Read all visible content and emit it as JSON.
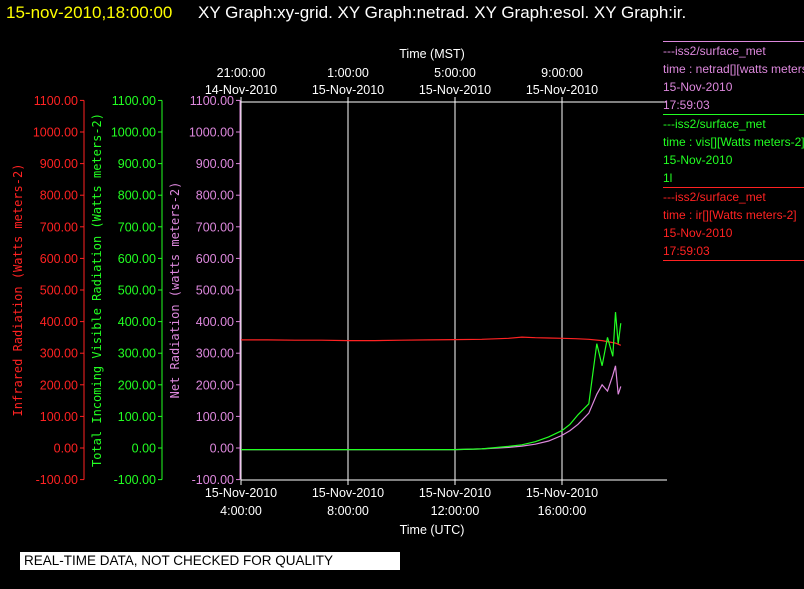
{
  "header": {
    "timestamp": "15-nov-2010,18:00:00",
    "title": "XY Graph:xy-grid.  XY Graph:netrad.  XY Graph:esol.  XY Graph:ir."
  },
  "legend": [
    {
      "lines": [
        "---iss2/surface_met",
        "time : netrad[][watts meters-2]",
        "15-Nov-2010",
        "17:59:03"
      ],
      "color": "#dd88dd"
    },
    {
      "lines": [
        "---iss2/surface_met",
        "time : vis[][Watts meters-2]",
        "15-Nov-2010",
        "1l"
      ],
      "color": "#22ff22"
    },
    {
      "lines": [
        "---iss2/surface_met",
        "time : ir[][Watts meters-2]",
        "15-Nov-2010",
        "17:59:03"
      ],
      "color": "#ff2222"
    }
  ],
  "footer": {
    "quality_notice": "REAL-TIME DATA, NOT CHECKED FOR QUALITY"
  },
  "colors": {
    "ir": "#ff2222",
    "vis": "#22ff22",
    "netrad": "#dd88dd",
    "grid": "#ffffff",
    "background": "#000000"
  },
  "chart_data": {
    "type": "line",
    "title": "",
    "xlabel": "Time (UTC)",
    "x2label": "Time (MST)",
    "xlim": [
      0,
      14.5
    ],
    "x_ticks": [
      {
        "x": 0,
        "date": "15-Nov-2010",
        "time": "4:00:00"
      },
      {
        "x": 4,
        "date": "15-Nov-2010",
        "time": "8:00:00"
      },
      {
        "x": 8,
        "date": "15-Nov-2010",
        "time": "12:00:00"
      },
      {
        "x": 12,
        "date": "15-Nov-2010",
        "time": "16:00:00"
      }
    ],
    "x2_ticks": [
      {
        "x": 0,
        "time": "21:00:00",
        "date": "14-Nov-2010"
      },
      {
        "x": 4,
        "time": "1:00:00",
        "date": "15-Nov-2010"
      },
      {
        "x": 8,
        "time": "5:00:00",
        "date": "15-Nov-2010"
      },
      {
        "x": 12,
        "time": "9:00:00",
        "date": "15-Nov-2010"
      }
    ],
    "y_axes": [
      {
        "label": "Infrared Radiation (Watts meters-2)",
        "color": "#ff2222"
      },
      {
        "label": "Total Incoming Visible Radiation (Watts meters-2)",
        "color": "#22ff22"
      },
      {
        "label": "Net Radiation (watts meters-2)",
        "color": "#dd88dd"
      }
    ],
    "ylim": [
      -100,
      1100
    ],
    "y_ticks": [
      "1100.00",
      "1000.00",
      "900.00",
      "800.00",
      "700.00",
      "600.00",
      "500.00",
      "400.00",
      "300.00",
      "200.00",
      "100.00",
      "0.00",
      "-100.00"
    ],
    "grid": true,
    "series": [
      {
        "key": "ir",
        "x": [
          0,
          1,
          2,
          3,
          4,
          5,
          6,
          7,
          8,
          9,
          10,
          10.5,
          11,
          11.5,
          12,
          12.5,
          13,
          13.5,
          14,
          14.2
        ],
        "values": [
          342,
          342,
          341,
          341,
          340,
          340,
          341,
          342,
          343,
          344,
          347,
          351,
          349,
          348,
          347,
          346,
          344,
          340,
          332,
          325
        ]
      },
      {
        "key": "vis",
        "x": [
          0,
          2,
          4,
          6,
          8,
          9,
          10,
          10.5,
          11,
          11.5,
          12,
          12.3,
          12.6,
          13,
          13.3,
          13.5,
          13.7,
          13.9,
          14,
          14.1,
          14.2
        ],
        "values": [
          -5,
          -5,
          -5,
          -5,
          -5,
          -3,
          5,
          10,
          20,
          35,
          55,
          75,
          105,
          140,
          330,
          260,
          350,
          290,
          430,
          330,
          395
        ]
      },
      {
        "key": "netrad",
        "x": [
          0,
          2,
          4,
          6,
          8,
          9,
          10,
          10.5,
          11,
          11.5,
          12,
          12.3,
          12.6,
          13,
          13.3,
          13.5,
          13.7,
          13.9,
          14,
          14.1,
          14.2
        ],
        "values": [
          -5,
          -5,
          -5,
          -5,
          -5,
          -3,
          2,
          6,
          12,
          22,
          40,
          55,
          75,
          110,
          170,
          200,
          180,
          230,
          260,
          170,
          195
        ]
      }
    ]
  }
}
